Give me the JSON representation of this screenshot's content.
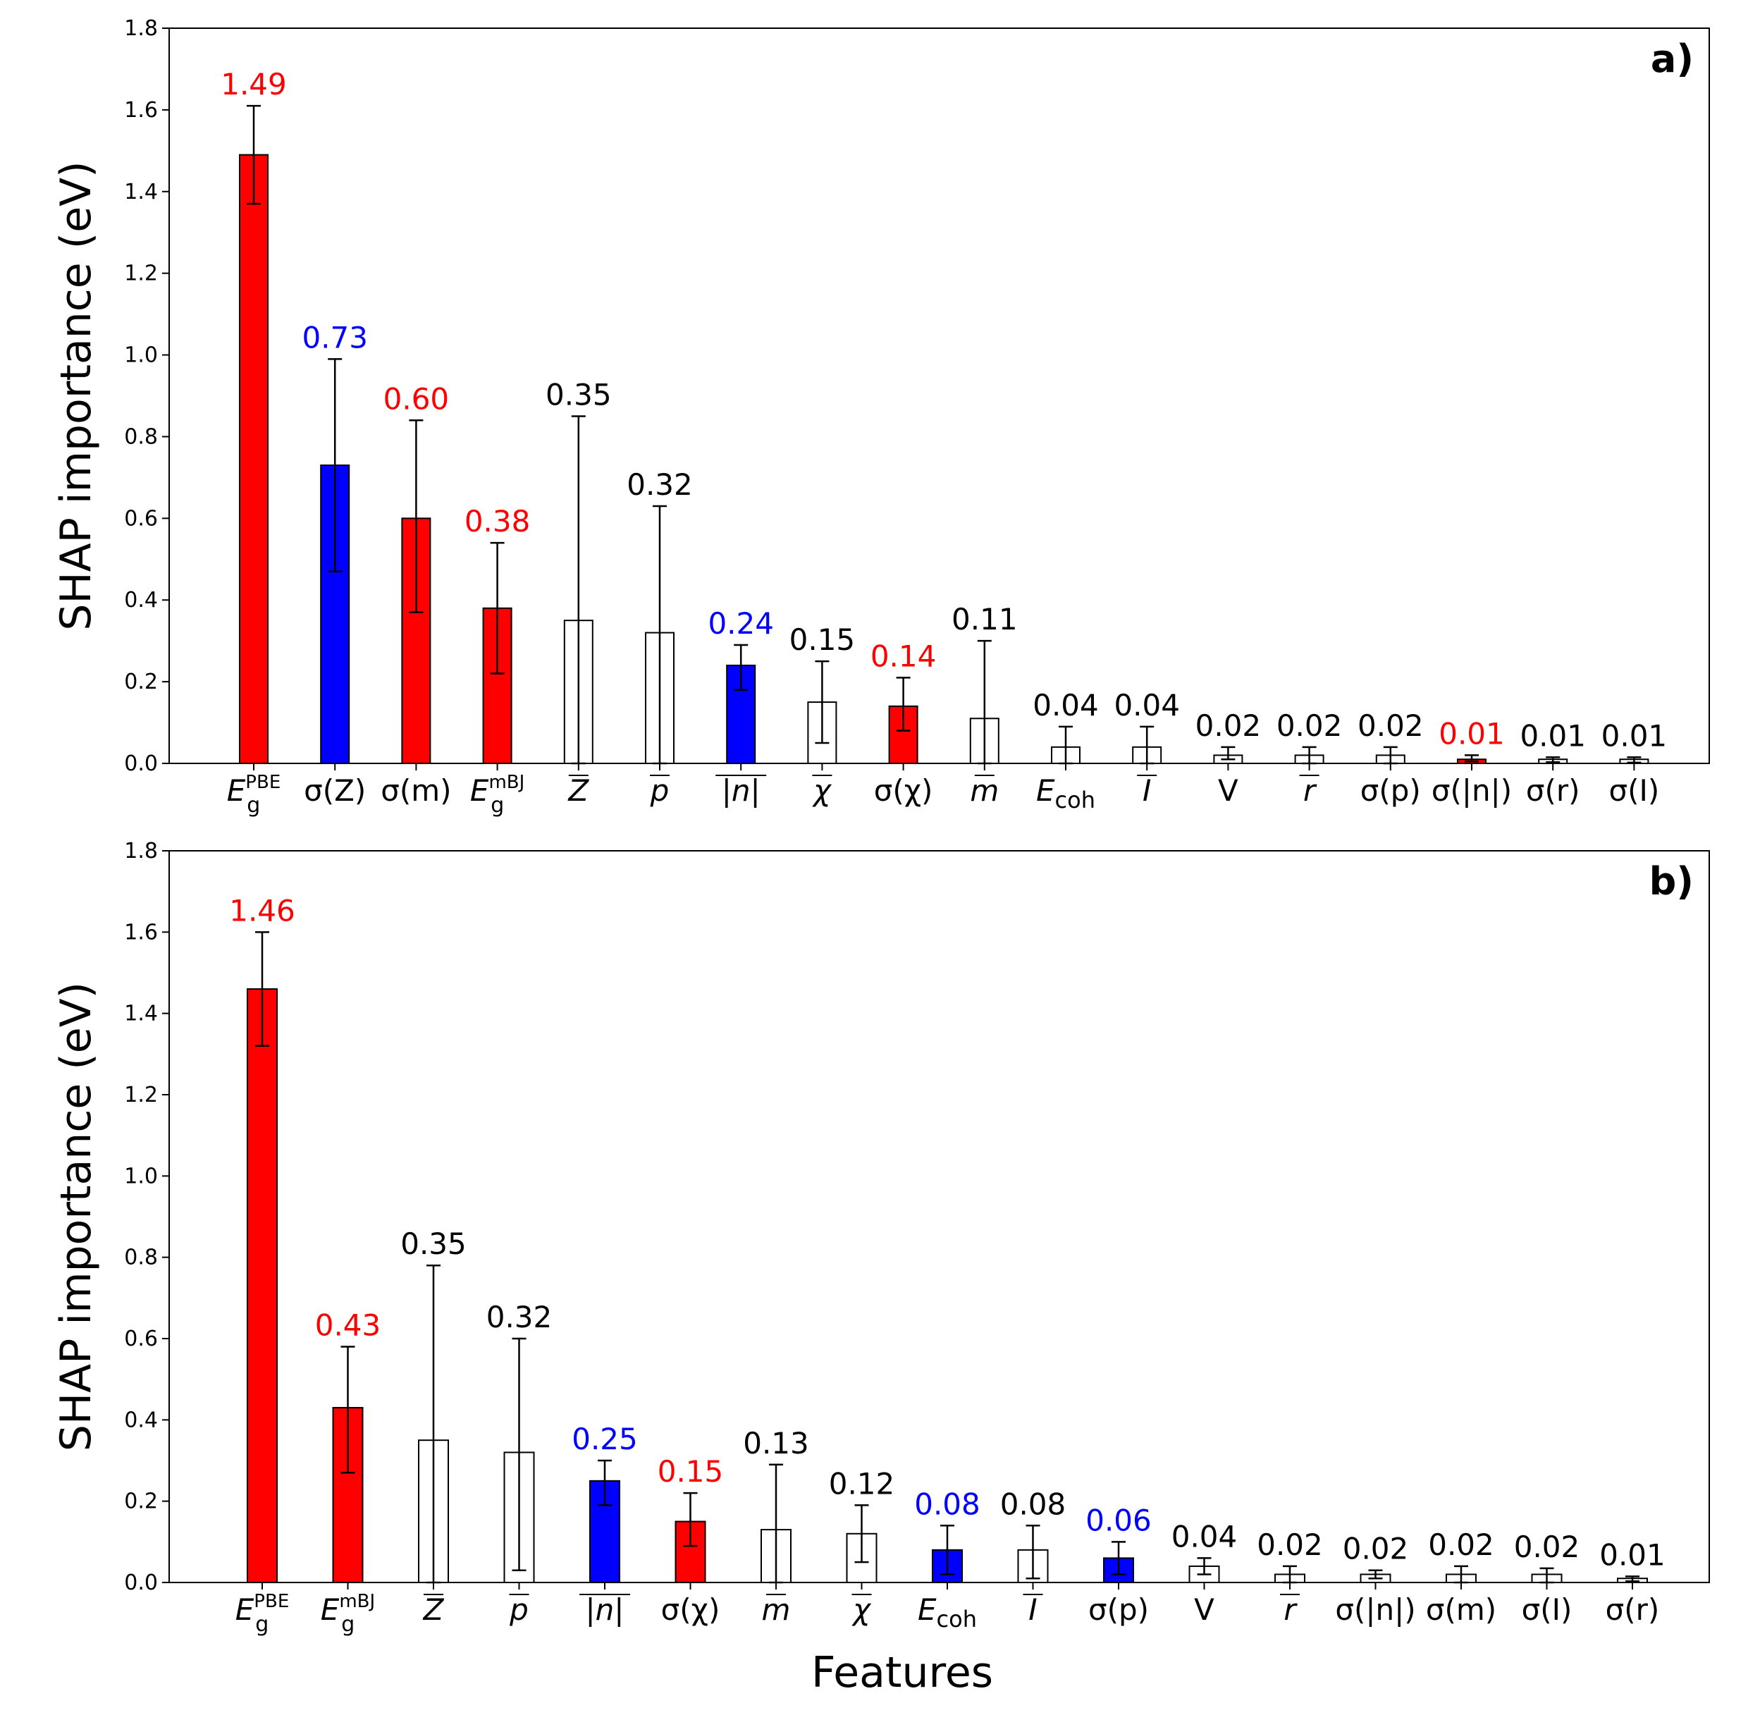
{
  "chart_data": [
    {
      "type": "bar",
      "panel_label": "a)",
      "ylabel": "SHAP importance (eV)",
      "xlabel": "",
      "ylim": [
        0,
        1.8
      ],
      "yticks": [
        "0.0",
        "0.2",
        "0.4",
        "0.6",
        "0.8",
        "1.0",
        "1.2",
        "1.4",
        "1.6",
        "1.8"
      ],
      "categories": [
        {
          "base": "E",
          "sub": "g",
          "sup": "PBE"
        },
        {
          "base": "σ(Z)"
        },
        {
          "base": "σ(m)"
        },
        {
          "base": "E",
          "sub": "g",
          "sup": "mBJ"
        },
        {
          "base": "Z",
          "bar": true
        },
        {
          "base": "p",
          "bar": true
        },
        {
          "base": "|n|",
          "bar": true
        },
        {
          "base": "χ",
          "bar": true
        },
        {
          "base": "σ(χ)"
        },
        {
          "base": "m",
          "bar": true
        },
        {
          "base": "E",
          "sub": "coh"
        },
        {
          "base": "I",
          "bar": true
        },
        {
          "base": "V"
        },
        {
          "base": "r",
          "bar": true
        },
        {
          "base": "σ(p)"
        },
        {
          "base": "σ(|n|)"
        },
        {
          "base": "σ(r)"
        },
        {
          "base": "σ(I)"
        }
      ],
      "values": [
        1.49,
        0.73,
        0.6,
        0.38,
        0.35,
        0.32,
        0.24,
        0.15,
        0.14,
        0.11,
        0.04,
        0.04,
        0.02,
        0.02,
        0.02,
        0.01,
        0.01,
        0.01
      ],
      "error_low": [
        1.37,
        0.47,
        0.37,
        0.22,
        0.0,
        0.0,
        0.18,
        0.05,
        0.08,
        0.0,
        0.0,
        0.0,
        0.01,
        0.0,
        0.0,
        0.005,
        0.003,
        0.002
      ],
      "error_high": [
        1.61,
        0.99,
        0.84,
        0.54,
        0.85,
        0.63,
        0.29,
        0.25,
        0.21,
        0.3,
        0.09,
        0.09,
        0.04,
        0.04,
        0.04,
        0.02,
        0.015,
        0.015
      ],
      "value_labels": [
        "1.49",
        "0.73",
        "0.60",
        "0.38",
        "0.35",
        "0.32",
        "0.24",
        "0.15",
        "0.14",
        "0.11",
        "0.04",
        "0.04",
        "0.02",
        "0.02",
        "0.02",
        "0.01",
        "0.01",
        "0.01"
      ],
      "fill_colors": [
        "#ff0000",
        "#0000ff",
        "#ff0000",
        "#ff0000",
        "#ffffff",
        "#ffffff",
        "#0000ff",
        "#ffffff",
        "#ff0000",
        "#ffffff",
        "#ffffff",
        "#ffffff",
        "#ffffff",
        "#ffffff",
        "#ffffff",
        "#ff0000",
        "#ffffff",
        "#ffffff"
      ],
      "label_colors": [
        "#ff0000",
        "#0000ff",
        "#ff0000",
        "#ff0000",
        "#000000",
        "#000000",
        "#0000ff",
        "#000000",
        "#ff0000",
        "#000000",
        "#000000",
        "#000000",
        "#000000",
        "#000000",
        "#000000",
        "#ff0000",
        "#000000",
        "#000000"
      ]
    },
    {
      "type": "bar",
      "panel_label": "b)",
      "ylabel": "SHAP importance (eV)",
      "xlabel": "Features",
      "ylim": [
        0,
        1.8
      ],
      "yticks": [
        "0.0",
        "0.2",
        "0.4",
        "0.6",
        "0.8",
        "1.0",
        "1.2",
        "1.4",
        "1.6",
        "1.8"
      ],
      "categories": [
        {
          "base": "E",
          "sub": "g",
          "sup": "PBE"
        },
        {
          "base": "E",
          "sub": "g",
          "sup": "mBJ"
        },
        {
          "base": "Z",
          "bar": true
        },
        {
          "base": "p",
          "bar": true
        },
        {
          "base": "|n|",
          "bar": true
        },
        {
          "base": "σ(χ)"
        },
        {
          "base": "m",
          "bar": true
        },
        {
          "base": "χ",
          "bar": true
        },
        {
          "base": "E",
          "sub": "coh"
        },
        {
          "base": "I",
          "bar": true
        },
        {
          "base": "σ(p)"
        },
        {
          "base": "V"
        },
        {
          "base": "r",
          "bar": true
        },
        {
          "base": "σ(|n|)"
        },
        {
          "base": "σ(m)"
        },
        {
          "base": "σ(I)"
        },
        {
          "base": "σ(r)"
        }
      ],
      "values": [
        1.46,
        0.43,
        0.35,
        0.32,
        0.25,
        0.15,
        0.13,
        0.12,
        0.08,
        0.08,
        0.06,
        0.04,
        0.02,
        0.02,
        0.02,
        0.02,
        0.01
      ],
      "error_low": [
        1.32,
        0.27,
        0.0,
        0.03,
        0.19,
        0.09,
        0.0,
        0.05,
        0.02,
        0.01,
        0.02,
        0.02,
        0.0,
        0.01,
        0.0,
        0.0,
        0.003
      ],
      "error_high": [
        1.6,
        0.58,
        0.78,
        0.6,
        0.3,
        0.22,
        0.29,
        0.19,
        0.14,
        0.14,
        0.1,
        0.06,
        0.04,
        0.03,
        0.04,
        0.035,
        0.015
      ],
      "value_labels": [
        "1.46",
        "0.43",
        "0.35",
        "0.32",
        "0.25",
        "0.15",
        "0.13",
        "0.12",
        "0.08",
        "0.08",
        "0.06",
        "0.04",
        "0.02",
        "0.02",
        "0.02",
        "0.02",
        "0.01"
      ],
      "fill_colors": [
        "#ff0000",
        "#ff0000",
        "#ffffff",
        "#ffffff",
        "#0000ff",
        "#ff0000",
        "#ffffff",
        "#ffffff",
        "#0000ff",
        "#ffffff",
        "#0000ff",
        "#ffffff",
        "#ffffff",
        "#ffffff",
        "#ffffff",
        "#ffffff",
        "#ffffff"
      ],
      "label_colors": [
        "#ff0000",
        "#ff0000",
        "#000000",
        "#000000",
        "#0000ff",
        "#ff0000",
        "#000000",
        "#000000",
        "#0000ff",
        "#000000",
        "#0000ff",
        "#000000",
        "#000000",
        "#000000",
        "#000000",
        "#000000",
        "#000000"
      ]
    }
  ]
}
